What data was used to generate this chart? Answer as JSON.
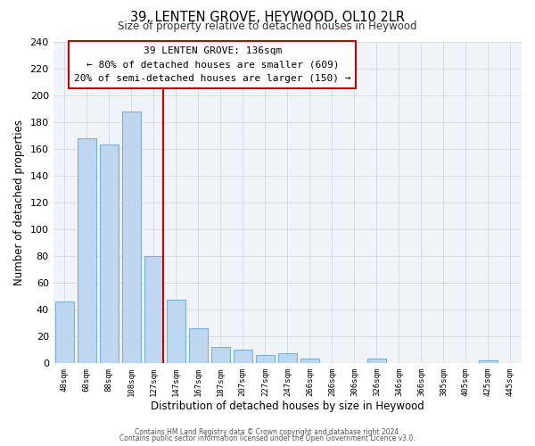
{
  "title": "39, LENTEN GROVE, HEYWOOD, OL10 2LR",
  "subtitle": "Size of property relative to detached houses in Heywood",
  "xlabel": "Distribution of detached houses by size in Heywood",
  "ylabel": "Number of detached properties",
  "bar_labels": [
    "48sqm",
    "68sqm",
    "88sqm",
    "108sqm",
    "127sqm",
    "147sqm",
    "167sqm",
    "187sqm",
    "207sqm",
    "227sqm",
    "247sqm",
    "266sqm",
    "286sqm",
    "306sqm",
    "326sqm",
    "346sqm",
    "366sqm",
    "385sqm",
    "405sqm",
    "425sqm",
    "445sqm"
  ],
  "bar_heights": [
    46,
    168,
    163,
    188,
    80,
    47,
    26,
    12,
    10,
    6,
    7,
    3,
    0,
    0,
    3,
    0,
    0,
    0,
    0,
    2,
    0
  ],
  "bar_color": "#bdd7ee",
  "bar_edge_color": "#7bafd4",
  "vline_color": "#cc0000",
  "annotation_title": "39 LENTEN GROVE: 136sqm",
  "annotation_line1": "← 80% of detached houses are smaller (609)",
  "annotation_line2": "20% of semi-detached houses are larger (150) →",
  "annotation_box_color": "#ffffff",
  "annotation_box_edge": "#cc0000",
  "ylim": [
    0,
    240
  ],
  "yticks": [
    0,
    20,
    40,
    60,
    80,
    100,
    120,
    140,
    160,
    180,
    200,
    220,
    240
  ],
  "grid_color": "#d0d8e4",
  "footer1": "Contains HM Land Registry data © Crown copyright and database right 2024.",
  "footer2": "Contains public sector information licensed under the Open Government Licence v3.0."
}
